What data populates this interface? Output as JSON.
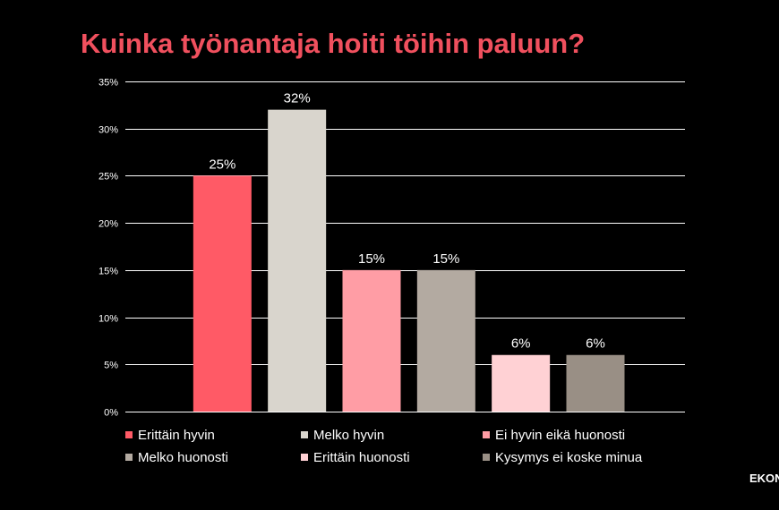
{
  "title": "Kuinka työnantaja hoiti töihin paluun?",
  "brand": "EKON",
  "chart_data": {
    "type": "bar",
    "title": "Kuinka työnantaja hoiti töihin paluun?",
    "categories": [
      "Erittäin hyvin",
      "Melko hyvin",
      "Ei hyvin eikä huonosti",
      "Melko huonosti",
      "Erittäin huonosti",
      "Kysymys ei koske minua"
    ],
    "values": [
      25,
      32,
      15,
      15,
      6,
      6
    ],
    "data_labels": [
      "25%",
      "32%",
      "15%",
      "15%",
      "6%",
      "6%"
    ],
    "colors": [
      "#ff5a66",
      "#d9d5cd",
      "#ff9da5",
      "#b3aaa1",
      "#ffd1d4",
      "#998f85"
    ],
    "ylim": [
      0,
      35
    ],
    "yticks": [
      0,
      5,
      10,
      15,
      20,
      25,
      30,
      35
    ],
    "ytick_labels": [
      "0%",
      "5%",
      "10%",
      "15%",
      "20%",
      "25%",
      "30%",
      "35%"
    ],
    "grid": true,
    "legend_position": "bottom",
    "background": "#000000",
    "title_color": "#f0505e"
  }
}
